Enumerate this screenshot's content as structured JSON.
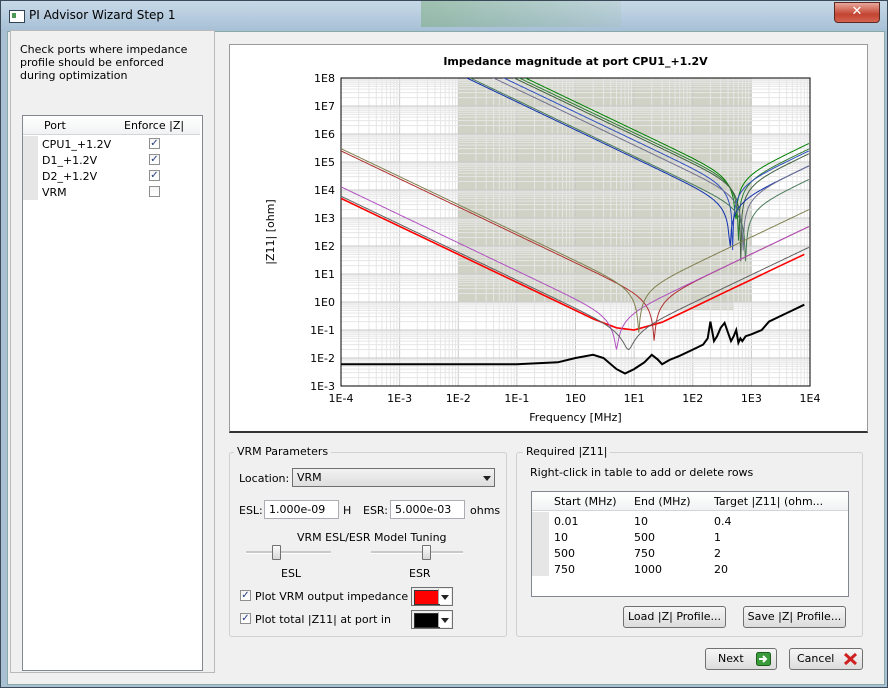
{
  "window": {
    "title": "PI Advisor Wizard Step 1",
    "close_glyph": "✕"
  },
  "left": {
    "help_text": "Check ports where impedance profile should be enforced during optimization",
    "headers": [
      "Port",
      "Enforce |Z|"
    ],
    "ports": [
      {
        "name": "CPU1_+1.2V",
        "enforce": true
      },
      {
        "name": "D1_+1.2V",
        "enforce": true
      },
      {
        "name": "D2_+1.2V",
        "enforce": true
      },
      {
        "name": "VRM",
        "enforce": false
      }
    ]
  },
  "chart_data": {
    "type": "line",
    "title": "Impedance magnitude at port CPU1_+1.2V",
    "xlabel": "Frequency [MHz]",
    "ylabel": "|Z11| [ohm]",
    "x_scale": "log",
    "y_scale": "log",
    "xlim": [
      0.0001,
      10000
    ],
    "ylim": [
      0.001,
      100000000
    ],
    "x_ticks": [
      "1E-4",
      "1E-3",
      "1E-2",
      "1E-1",
      "1E0",
      "1E1",
      "1E2",
      "1E3",
      "1E4"
    ],
    "y_ticks": [
      "1E-3",
      "1E-2",
      "1E-1",
      "1E0",
      "1E1",
      "1E2",
      "1E3",
      "1E4",
      "1E5",
      "1E6",
      "1E7",
      "1E8"
    ],
    "grid": true,
    "target_mask": [
      {
        "f_start": 0.01,
        "f_end": 10,
        "target": 0.4
      },
      {
        "f_start": 10,
        "f_end": 500,
        "target": 1
      },
      {
        "f_start": 500,
        "f_end": 750,
        "target": 2
      },
      {
        "f_start": 750,
        "f_end": 1000,
        "target": 20
      }
    ],
    "series": [
      {
        "color": "#000000",
        "kind": "total",
        "points": [
          [
            0.0001,
            0.006
          ],
          [
            0.001,
            0.006
          ],
          [
            0.01,
            0.006
          ],
          [
            0.1,
            0.006
          ],
          [
            0.5,
            0.007
          ],
          [
            1,
            0.01
          ],
          [
            2,
            0.013
          ],
          [
            3,
            0.01
          ],
          [
            5,
            0.004
          ],
          [
            7,
            0.0028
          ],
          [
            10,
            0.004
          ],
          [
            15,
            0.007
          ],
          [
            20,
            0.013
          ],
          [
            25,
            0.009
          ],
          [
            30,
            0.006
          ],
          [
            40,
            0.0085
          ],
          [
            60,
            0.012
          ],
          [
            100,
            0.02
          ],
          [
            150,
            0.03
          ],
          [
            180,
            0.05
          ],
          [
            200,
            0.2
          ],
          [
            230,
            0.04
          ],
          [
            260,
            0.06
          ],
          [
            300,
            0.12
          ],
          [
            350,
            0.18
          ],
          [
            400,
            0.08
          ],
          [
            450,
            0.04
          ],
          [
            500,
            0.06
          ],
          [
            550,
            0.1
          ],
          [
            600,
            0.035
          ],
          [
            650,
            0.05
          ],
          [
            700,
            0.04
          ],
          [
            800,
            0.06
          ],
          [
            1000,
            0.07
          ],
          [
            1500,
            0.1
          ],
          [
            2000,
            0.2
          ],
          [
            3000,
            0.3
          ],
          [
            5000,
            0.5
          ],
          [
            7000,
            0.7
          ],
          [
            8000,
            0.8
          ]
        ]
      },
      {
        "color": "#ff0000",
        "kind": "vrm",
        "points": [
          [
            0.0001,
            5000
          ],
          [
            0.01,
            50
          ],
          [
            0.1,
            5
          ],
          [
            1,
            0.5
          ],
          [
            2,
            0.25
          ],
          [
            3,
            0.18
          ],
          [
            5,
            0.12
          ],
          [
            10,
            0.1
          ],
          [
            30,
            0.19
          ],
          [
            100,
            0.63
          ],
          [
            300,
            1.9
          ],
          [
            1000,
            6.3
          ],
          [
            3000,
            19
          ],
          [
            8000,
            50
          ]
        ]
      },
      {
        "color": "#008000",
        "f0": 540,
        "z0": 0.06,
        "A": 14000000.0,
        "esl": 1e-05,
        "esr": 0.06
      },
      {
        "color": "#2e7d32",
        "f0": 600,
        "z0": 0.1,
        "A": 11000000.0,
        "esl": 8e-06,
        "esr": 0.1
      },
      {
        "color": "#406040",
        "f0": 660,
        "z0": 0.08,
        "A": 9000000.0,
        "esl": 7e-06,
        "esr": 0.08
      },
      {
        "color": "#3050c0",
        "f0": 480,
        "z0": 0.07,
        "A": 6000000.0,
        "esl": 1e-05,
        "esr": 0.07
      },
      {
        "color": "#1030b0",
        "f0": 430,
        "z0": 0.3,
        "A": 1400000.0,
        "esl": 8e-06,
        "esr": 0.3
      },
      {
        "color": "#707090",
        "f0": 720,
        "z0": 0.12,
        "A": 4000000.0,
        "esl": 6e-06,
        "esr": 0.12
      },
      {
        "color": "#4a7a5a",
        "f0": 800,
        "z0": 0.05,
        "A": 1600000.0,
        "esl": 5e-06,
        "esr": 0.05
      },
      {
        "color": "#b03030",
        "f0": 22,
        "z0": 0.04,
        "A": 25,
        "esl": 0.001,
        "esr": 0.04
      },
      {
        "color": "#b050c0",
        "f0": 5,
        "z0": 0.02,
        "A": 1.3,
        "esl": 0.004,
        "esr": 0.02
      },
      {
        "color": "#606060",
        "f0": 8,
        "z0": 0.02,
        "A": 0.6,
        "esl": 0.003,
        "esr": 0.02
      },
      {
        "color": "#808050",
        "f0": 12,
        "z0": 0.08,
        "A": 30,
        "esl": 0.002,
        "esr": 0.08
      }
    ]
  },
  "vrm": {
    "group_title": "VRM Parameters",
    "location_label": "Location:",
    "location_value": "VRM",
    "esl_label": "ESL:",
    "esl_value": "1.000e-09",
    "esl_unit": "H",
    "esr_label": "ESR:",
    "esr_value": "5.000e-03",
    "esr_unit": "ohms",
    "tuning_title": "VRM ESL/ESR Model Tuning",
    "slider_esl_label": "ESL",
    "slider_esr_label": "ESR",
    "slider_esl_level": 0.35,
    "slider_esr_level": 0.6,
    "plot_vrm_label": "Plot VRM output impedance in",
    "plot_vrm_checked": true,
    "plot_vrm_color": "#ff0000",
    "plot_total_label": "Plot total |Z11| at port in",
    "plot_total_checked": true,
    "plot_total_color": "#000000"
  },
  "required": {
    "group_title": "Required |Z11|",
    "hint": "Right-click in table to add or delete rows",
    "headers": [
      "Start (MHz)",
      "End (MHz)",
      "Target |Z11| (ohm..."
    ],
    "rows": [
      [
        "0.01",
        "10",
        "0.4"
      ],
      [
        "10",
        "500",
        "1"
      ],
      [
        "500",
        "750",
        "2"
      ],
      [
        "750",
        "1000",
        "20"
      ]
    ],
    "load_button": "Load |Z| Profile...",
    "save_button": "Save |Z| Profile..."
  },
  "footer": {
    "next_label": "Next",
    "cancel_label": "Cancel"
  }
}
